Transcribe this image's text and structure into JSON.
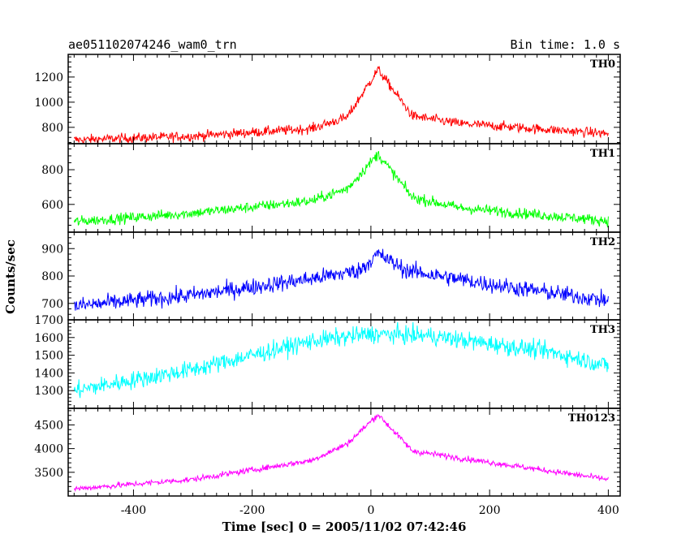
{
  "chart_data": {
    "type": "line",
    "title_left": "ae051102074246_wam0_trn",
    "title_right": "Bin time: 1.0 s",
    "xlabel": "Time [sec] 0 = 2005/11/02 07:42:46",
    "ylabel": "Counts/sec",
    "xlim": [
      -510,
      420
    ],
    "x_ticks": [
      -400,
      -200,
      0,
      200,
      400
    ],
    "x_range_data": [
      -500,
      400
    ],
    "peak_time": 12,
    "panels": [
      {
        "name": "TH0",
        "color": "#ff0000",
        "ylim": [
          670,
          1380
        ],
        "y_ticks": [
          800,
          1000,
          1200
        ],
        "baseline_profile": [
          [
            -500,
            700
          ],
          [
            -300,
            730
          ],
          [
            -100,
            790
          ],
          [
            -40,
            880
          ],
          [
            12,
            1260
          ],
          [
            70,
            890
          ],
          [
            150,
            830
          ],
          [
            400,
            750
          ]
        ],
        "noise": 70
      },
      {
        "name": "TH1",
        "color": "#00ff00",
        "ylim": [
          440,
          950
        ],
        "y_ticks": [
          600,
          800
        ],
        "baseline_profile": [
          [
            -500,
            500
          ],
          [
            -300,
            550
          ],
          [
            -100,
            620
          ],
          [
            -40,
            690
          ],
          [
            12,
            890
          ],
          [
            70,
            640
          ],
          [
            150,
            580
          ],
          [
            400,
            505
          ]
        ],
        "noise": 55
      },
      {
        "name": "TH2",
        "color": "#0000ff",
        "ylim": [
          640,
          960
        ],
        "y_ticks": [
          700,
          800,
          900
        ],
        "baseline_profile": [
          [
            -500,
            690
          ],
          [
            -300,
            730
          ],
          [
            -100,
            790
          ],
          [
            -20,
            820
          ],
          [
            12,
            880
          ],
          [
            60,
            820
          ],
          [
            200,
            770
          ],
          [
            400,
            710
          ]
        ],
        "noise": 55
      },
      {
        "name": "TH3",
        "color": "#00ffff",
        "ylim": [
          1200,
          1700
        ],
        "y_ticks": [
          1300,
          1400,
          1500,
          1600,
          1700
        ],
        "baseline_profile": [
          [
            -500,
            1300
          ],
          [
            -300,
            1420
          ],
          [
            -100,
            1580
          ],
          [
            0,
            1620
          ],
          [
            100,
            1610
          ],
          [
            300,
            1520
          ],
          [
            400,
            1440
          ]
        ],
        "noise": 90
      },
      {
        "name": "TH0123",
        "color": "#ff00ff",
        "ylim": [
          3000,
          4850
        ],
        "y_ticks": [
          3500,
          4000,
          4500
        ],
        "baseline_profile": [
          [
            -500,
            3150
          ],
          [
            -300,
            3350
          ],
          [
            -100,
            3750
          ],
          [
            -40,
            4100
          ],
          [
            12,
            4720
          ],
          [
            70,
            3950
          ],
          [
            150,
            3800
          ],
          [
            400,
            3350
          ]
        ],
        "noise": 110
      }
    ]
  }
}
